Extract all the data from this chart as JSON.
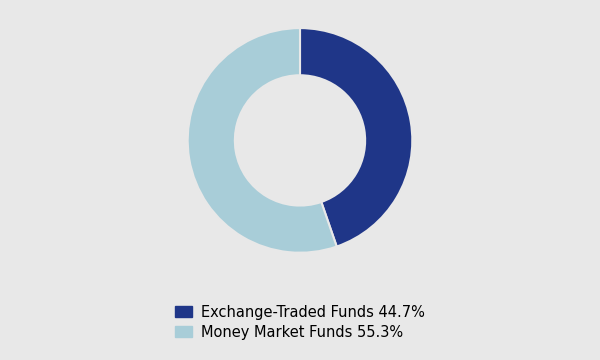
{
  "labels": [
    "Exchange-Traded Funds 44.7%",
    "Money Market Funds 55.3%"
  ],
  "values": [
    44.7,
    55.3
  ],
  "colors": [
    "#1f3688",
    "#a8cdd8"
  ],
  "background_color": "#e8e8e8",
  "legend_fontsize": 10.5,
  "donut_width": 0.42,
  "startangle": 90
}
